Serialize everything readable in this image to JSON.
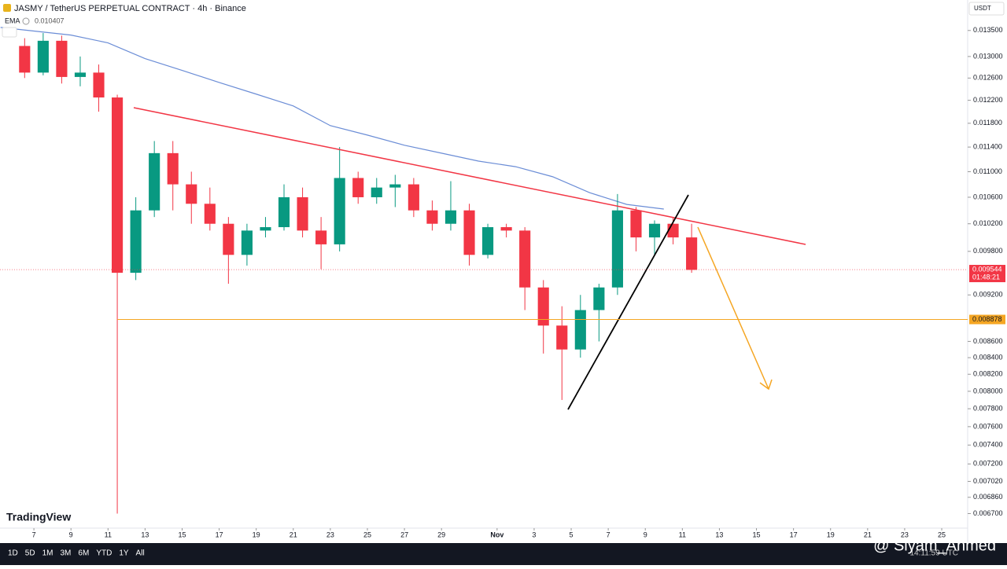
{
  "header": {
    "title": "JASMY / TetherUS PERPETUAL CONTRACT · 4h · Binance",
    "indicator": "EMA",
    "indicator_value": "0.010407",
    "currency": "USDT"
  },
  "logo": "TradingView",
  "watermark": "@ Siyam_Ahmed",
  "toolbar": {
    "ranges": [
      "1D",
      "5D",
      "1M",
      "3M",
      "6M",
      "YTD",
      "1Y",
      "All"
    ],
    "time": "14:11:59 UTC"
  },
  "chart_data": {
    "type": "candlestick",
    "log_scale": true,
    "up_color": "#089981",
    "down_color": "#f23645",
    "x": [
      6,
      7,
      8,
      9,
      10,
      11,
      12,
      13,
      14,
      15,
      16,
      17,
      18,
      19,
      20,
      21,
      22,
      23,
      24,
      25,
      26,
      27,
      28,
      29,
      30,
      31,
      32,
      33,
      34,
      35,
      36,
      37,
      38,
      39,
      40,
      41,
      42
    ],
    "open": [
      0.0132,
      0.0127,
      0.0133,
      0.01262,
      0.0127,
      0.01225,
      0.0095,
      0.0104,
      0.0113,
      0.0108,
      0.0105,
      0.0102,
      0.00975,
      0.0101,
      0.01015,
      0.0106,
      0.0101,
      0.0099,
      0.0109,
      0.0106,
      0.01075,
      0.0108,
      0.0104,
      0.0102,
      0.0104,
      0.00975,
      0.01015,
      0.0101,
      0.0093,
      0.0088,
      0.0085,
      0.009,
      0.0093,
      0.0104,
      0.01,
      0.0102,
      0.01
    ],
    "high": [
      0.01335,
      0.01345,
      0.0134,
      0.013,
      0.01285,
      0.0123,
      0.0106,
      0.0115,
      0.0115,
      0.011,
      0.01075,
      0.0103,
      0.0102,
      0.0103,
      0.0108,
      0.01075,
      0.0103,
      0.0114,
      0.011,
      0.0109,
      0.01095,
      0.0109,
      0.01055,
      0.01085,
      0.0105,
      0.0102,
      0.0102,
      0.01015,
      0.0094,
      0.00905,
      0.0092,
      0.00935,
      0.01065,
      0.01045,
      0.01025,
      0.0103,
      0.0102
    ],
    "low": [
      0.0126,
      0.01265,
      0.0125,
      0.01245,
      0.012,
      0.0067,
      0.0094,
      0.0103,
      0.0104,
      0.0102,
      0.0101,
      0.00935,
      0.0096,
      0.01,
      0.0101,
      0.01,
      0.00955,
      0.0098,
      0.0105,
      0.0105,
      0.01045,
      0.0103,
      0.0101,
      0.0101,
      0.0096,
      0.0097,
      0.01,
      0.009,
      0.00845,
      0.0079,
      0.0084,
      0.0086,
      0.0092,
      0.0098,
      0.00975,
      0.0099,
      0.0095
    ],
    "close": [
      0.0127,
      0.0133,
      0.01262,
      0.0127,
      0.01225,
      0.0095,
      0.0104,
      0.0113,
      0.0108,
      0.0105,
      0.0102,
      0.00975,
      0.0101,
      0.01015,
      0.0106,
      0.0101,
      0.0099,
      0.0109,
      0.0106,
      0.01075,
      0.0108,
      0.0104,
      0.0102,
      0.0104,
      0.00975,
      0.01015,
      0.0101,
      0.0093,
      0.0088,
      0.0085,
      0.009,
      0.0093,
      0.0104,
      0.01,
      0.0102,
      0.01,
      0.00954
    ],
    "ema": {
      "color": "#6b8dd6",
      "x": [
        5.2,
        9,
        11,
        13,
        15,
        17,
        19,
        21,
        23,
        25,
        27,
        29,
        31,
        33,
        35,
        37,
        39,
        41
      ],
      "values": [
        0.01356,
        0.01341,
        0.01326,
        0.01296,
        0.01274,
        0.01252,
        0.01231,
        0.0121,
        0.01176,
        0.0116,
        0.01143,
        0.0113,
        0.01117,
        0.01108,
        0.01092,
        0.01067,
        0.01049,
        0.01042
      ]
    },
    "hline": {
      "value": 0.008878,
      "label": "0.008878",
      "color": "#f5a623"
    },
    "last_price": {
      "value": 0.009544,
      "label": "0.009544",
      "countdown": "01:48:21"
    },
    "xlim": [
      5.17,
      57.4
    ],
    "ylim": [
      0.00656,
      0.01411
    ],
    "xticks": [
      7,
      9,
      11,
      13,
      15,
      17,
      19,
      21,
      23,
      25,
      27,
      29,
      {
        "value": 32,
        "label": "Nov"
      },
      {
        "value": 34,
        "label": "3"
      },
      {
        "value": 36,
        "label": "5"
      },
      {
        "value": 38,
        "label": "7"
      },
      {
        "value": 40,
        "label": "9"
      },
      {
        "value": 42,
        "label": "11"
      },
      {
        "value": 44,
        "label": "13"
      },
      {
        "value": 46,
        "label": "15"
      },
      {
        "value": 48,
        "label": "17"
      },
      {
        "value": 50,
        "label": "19"
      },
      {
        "value": 52,
        "label": "21"
      },
      {
        "value": 54,
        "label": "23"
      },
      {
        "value": 56,
        "label": "25"
      }
    ],
    "yticks": [
      {
        "value": 0.0135,
        "label": "0.013500"
      },
      {
        "value": 0.013,
        "label": "0.013000"
      },
      {
        "value": 0.0126,
        "label": "0.012600"
      },
      {
        "value": 0.0122,
        "label": "0.012200"
      },
      {
        "value": 0.0118,
        "label": "0.011800"
      },
      {
        "value": 0.0114,
        "label": "0.011400"
      },
      {
        "value": 0.011,
        "label": "0.011000"
      },
      {
        "value": 0.0106,
        "label": "0.010600"
      },
      {
        "value": 0.0102,
        "label": "0.010200"
      },
      {
        "value": 0.0098,
        "label": "0.009800"
      },
      {
        "value": 0.0092,
        "label": "0.009200"
      },
      {
        "value": 0.0086,
        "label": "0.008600"
      },
      {
        "value": 0.0084,
        "label": "0.008400"
      },
      {
        "value": 0.0082,
        "label": "0.008200"
      },
      {
        "value": 0.008,
        "label": "0.008000"
      },
      {
        "value": 0.0078,
        "label": "0.007800"
      },
      {
        "value": 0.0076,
        "label": "0.007600"
      },
      {
        "value": 0.0074,
        "label": "0.007400"
      },
      {
        "value": 0.0072,
        "label": "0.007200"
      },
      {
        "value": 0.00702,
        "label": "0.007020"
      },
      {
        "value": 0.00686,
        "label": "0.006860"
      },
      {
        "value": 0.0067,
        "label": "0.006700"
      }
    ]
  }
}
